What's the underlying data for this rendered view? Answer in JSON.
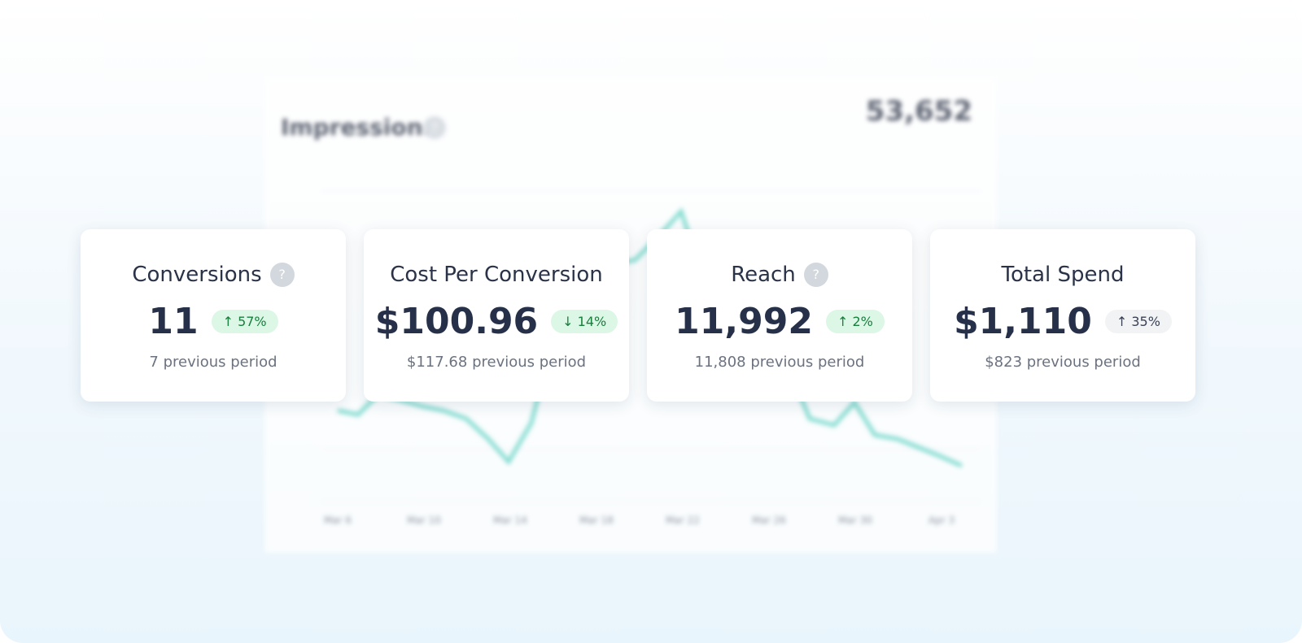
{
  "background_chart": {
    "title": "Impressions",
    "help_icon": "?",
    "total": "53,652",
    "x_labels": [
      "Mar 6",
      "Mar 10",
      "Mar 14",
      "Mar 18",
      "Mar 22",
      "Mar 26",
      "Mar 30",
      "Apr 3"
    ]
  },
  "cards": [
    {
      "title": "Conversions",
      "help_icon": "?",
      "value": "11",
      "change": "↑ 57%",
      "badge_style": "positive",
      "previous": "7 previous period"
    },
    {
      "title": "Cost Per Conversion",
      "value": "$100.96",
      "change": "↓ 14%",
      "badge_style": "positive",
      "previous": "$117.68 previous period"
    },
    {
      "title": "Reach",
      "help_icon": "?",
      "value": "11,992",
      "change": "↑ 2%",
      "badge_style": "positive",
      "previous": "11,808 previous period"
    },
    {
      "title": "Total Spend",
      "value": "$1,110",
      "change": "↑ 35%",
      "badge_style": "neutral",
      "previous": "$823 previous period"
    }
  ]
}
